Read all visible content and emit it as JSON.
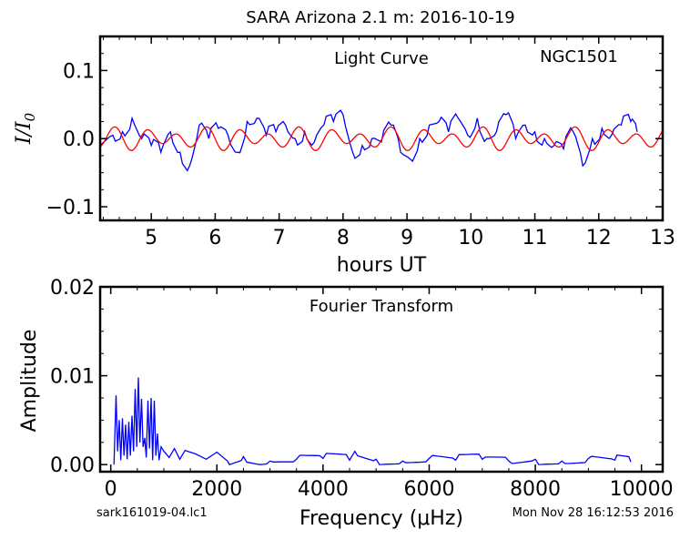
{
  "figure": {
    "title": "SARA Arizona 2.1 m:  2016-10-19",
    "filename": "sark161019-04.lc1",
    "timestamp": "Mon Nov 28 16:12:53 2016"
  },
  "chart_data": [
    {
      "type": "line",
      "label": "Light Curve",
      "object_label": "NGC1501",
      "xlabel": "hours UT",
      "ylabel": "I/I0",
      "xlim": [
        4.2,
        13.0
      ],
      "ylim": [
        -0.12,
        0.15
      ],
      "xticks": [
        "5",
        "6",
        "7",
        "8",
        "9",
        "10",
        "11",
        "12",
        "13"
      ],
      "yticks": [
        "0.1",
        "0.0",
        "−0.1"
      ],
      "grid": false,
      "series": [
        {
          "color": "#0000ff",
          "x": [
            4.2,
            4.4,
            4.55,
            4.7,
            4.85,
            5.0,
            5.15,
            5.3,
            5.45,
            5.6,
            5.75,
            5.9,
            6.05,
            6.2,
            6.35,
            6.5,
            6.65,
            6.8,
            6.95,
            7.1,
            7.25,
            7.4,
            7.55,
            7.7,
            7.85,
            8.0,
            8.15,
            8.3,
            8.45,
            8.6,
            8.75,
            8.9,
            9.05,
            9.2,
            9.35,
            9.5,
            9.65,
            9.8,
            9.95,
            10.1,
            10.25,
            10.4,
            10.55,
            10.7,
            10.85,
            11.0,
            11.15,
            11.3,
            11.45,
            11.6,
            11.75,
            11.9,
            12.05,
            12.2,
            12.35,
            12.5,
            12.6
          ],
          "y": [
            -0.01,
            0.005,
            0.01,
            0.03,
            0.0,
            -0.01,
            -0.02,
            0.01,
            -0.02,
            -0.04,
            0.02,
            0.0,
            0.015,
            0.005,
            -0.02,
            0.025,
            0.03,
            0.005,
            0.01,
            0.02,
            0.0,
            0.01,
            -0.005,
            0.02,
            0.025,
            0.035,
            -0.02,
            -0.01,
            0.0,
            -0.005,
            0.02,
            -0.02,
            -0.03,
            0.0,
            0.02,
            0.025,
            0.01,
            0.03,
            0.005,
            0.03,
            0.0,
            0.01,
            0.035,
            0.0,
            0.02,
            0.01,
            0.0,
            -0.01,
            -0.015,
            0.01,
            -0.04,
            0.0,
            0.015,
            0.005,
            0.02,
            0.025,
            0.01
          ]
        },
        {
          "color": "#ff0000",
          "x": [
            4.2,
            13.0
          ],
          "y": [
            0.0,
            0.0
          ]
        }
      ]
    },
    {
      "type": "line",
      "label": "Fourier Transform",
      "xlabel": "Frequency (μHz)",
      "ylabel": "Amplitude",
      "xlim": [
        -200,
        10400
      ],
      "ylim": [
        -0.0008,
        0.02
      ],
      "xticks": [
        "0",
        "2000",
        "4000",
        "6000",
        "8000",
        "10000"
      ],
      "yticks": [
        "0.02",
        "0.01",
        "0.00"
      ],
      "grid": false,
      "series": [
        {
          "color": "#0000ff",
          "x": [
            60,
            100,
            130,
            160,
            190,
            220,
            250,
            280,
            310,
            340,
            370,
            400,
            430,
            460,
            490,
            520,
            550,
            580,
            610,
            640,
            670,
            700,
            730,
            760,
            790,
            820,
            850,
            880,
            910,
            950,
            1000,
            1100,
            1200,
            1300,
            1400,
            1600,
            1800,
            2000,
            2200,
            2500,
            3000,
            3500,
            4000,
            4500,
            4600,
            5000,
            5500,
            6000,
            6500,
            7000,
            7500,
            8000,
            8500,
            9000,
            9500,
            9800
          ],
          "y": [
            0.0,
            0.0078,
            0.0015,
            0.005,
            0.0005,
            0.0052,
            0.001,
            0.0045,
            0.0006,
            0.0048,
            0.001,
            0.0055,
            0.0015,
            0.0085,
            0.002,
            0.0098,
            0.0025,
            0.0074,
            0.002,
            0.003,
            0.0008,
            0.0072,
            0.0018,
            0.0075,
            0.0005,
            0.0072,
            0.001,
            0.0035,
            0.0005,
            0.002,
            0.0015,
            0.0008,
            0.0018,
            0.0006,
            0.0016,
            0.0012,
            0.0006,
            0.0014,
            0.0004,
            0.0009,
            0.0004,
            0.0006,
            0.0007,
            0.0005,
            0.0015,
            0.0006,
            0.0004,
            0.0007,
            0.0005,
            0.0006,
            0.0004,
            0.0006,
            0.0004,
            0.0007,
            0.0005,
            0.0003
          ]
        }
      ]
    }
  ]
}
